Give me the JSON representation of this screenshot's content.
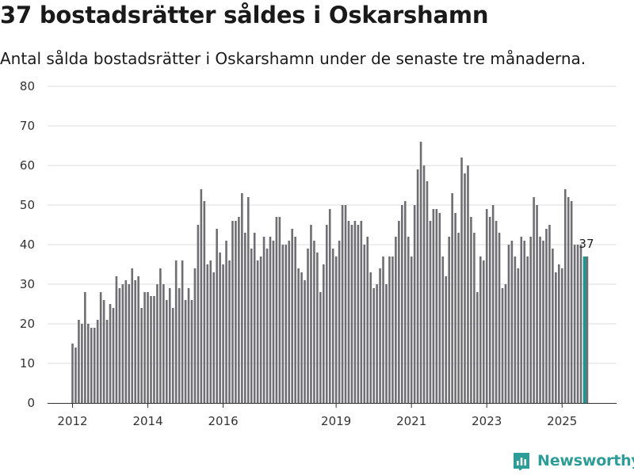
{
  "brand": {
    "name": "Newsworthy",
    "color": "#2e9c97"
  },
  "colors": {
    "bar": "#6e6e73",
    "highlight": "#1f9590"
  },
  "chart_data": {
    "type": "bar",
    "title": "37 bostadsrätter såldes i Oskarshamn",
    "subtitle": "Antal sålda bostadsrätter i Oskarshamn under de senaste tre månaderna.",
    "xlabel": "",
    "ylabel": "",
    "ylim": [
      0,
      80
    ],
    "yticks": [
      0,
      10,
      20,
      30,
      40,
      50,
      60,
      70,
      80
    ],
    "start": "2012-01",
    "xticks": [
      {
        "label": "2012",
        "index": 0
      },
      {
        "label": "2014",
        "index": 24
      },
      {
        "label": "2016",
        "index": 48
      },
      {
        "label": "2019",
        "index": 84
      },
      {
        "label": "2021",
        "index": 108
      },
      {
        "label": "2023",
        "index": 132
      },
      {
        "label": "2025",
        "index": 156
      }
    ],
    "values": [
      15,
      14,
      21,
      20,
      28,
      20,
      19,
      19,
      21,
      28,
      26,
      21,
      25,
      24,
      32,
      29,
      30,
      31,
      30,
      34,
      31,
      32,
      24,
      28,
      28,
      27,
      27,
      30,
      34,
      30,
      26,
      29,
      24,
      36,
      29,
      36,
      26,
      29,
      26,
      34,
      45,
      54,
      51,
      35,
      36,
      33,
      44,
      38,
      35,
      41,
      36,
      46,
      46,
      47,
      53,
      43,
      52,
      39,
      43,
      36,
      37,
      42,
      39,
      42,
      41,
      47,
      47,
      40,
      40,
      41,
      44,
      42,
      34,
      33,
      31,
      39,
      45,
      41,
      38,
      28,
      35,
      45,
      49,
      39,
      37,
      41,
      50,
      50,
      46,
      45,
      46,
      45,
      46,
      40,
      42,
      33,
      29,
      30,
      34,
      37,
      30,
      37,
      37,
      42,
      46,
      50,
      51,
      42,
      37,
      50,
      59,
      66,
      60,
      56,
      46,
      49,
      49,
      48,
      37,
      32,
      42,
      53,
      48,
      43,
      62,
      58,
      60,
      47,
      43,
      28,
      37,
      36,
      49,
      47,
      50,
      46,
      43,
      29,
      30,
      40,
      41,
      37,
      34,
      42,
      41,
      37,
      42,
      52,
      50,
      42,
      41,
      44,
      45,
      39,
      33,
      35,
      34,
      54,
      52,
      51,
      40,
      40,
      40,
      37,
      37
    ],
    "highlight_index": 163,
    "annotation": {
      "label": "37",
      "index": 163
    }
  }
}
